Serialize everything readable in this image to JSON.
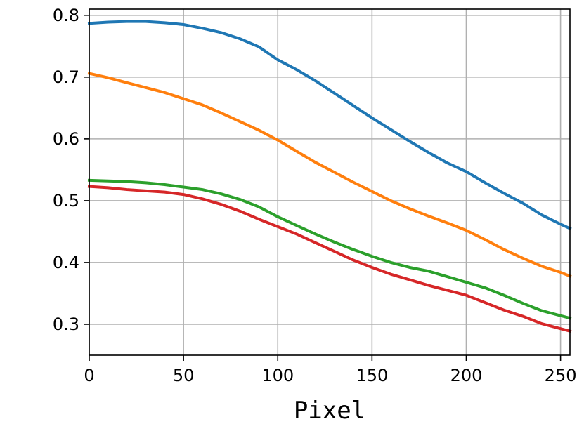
{
  "chart_data": {
    "type": "line",
    "title": "",
    "xlabel": "Pixel",
    "ylabel": "",
    "xlim": [
      0,
      255
    ],
    "ylim": [
      0.25,
      0.81
    ],
    "grid": true,
    "legend": "none",
    "x_ticks": [
      0,
      50,
      100,
      150,
      200,
      250
    ],
    "y_ticks": [
      0.3,
      0.4,
      0.5,
      0.6,
      0.7,
      0.8
    ],
    "x_tick_labels": [
      "0",
      "50",
      "100",
      "150",
      "200",
      "250"
    ],
    "y_tick_labels": [
      "0.3",
      "0.4",
      "0.5",
      "0.6",
      "0.7",
      "0.8"
    ],
    "x": [
      0,
      10,
      20,
      30,
      40,
      50,
      60,
      70,
      80,
      90,
      100,
      110,
      120,
      130,
      140,
      150,
      160,
      170,
      180,
      190,
      200,
      210,
      220,
      230,
      240,
      250,
      255
    ],
    "series": [
      {
        "color": "#1f77b4",
        "values": [
          0.787,
          0.789,
          0.79,
          0.79,
          0.788,
          0.785,
          0.779,
          0.772,
          0.762,
          0.749,
          0.728,
          0.712,
          0.694,
          0.674,
          0.654,
          0.634,
          0.615,
          0.596,
          0.578,
          0.561,
          0.547,
          0.529,
          0.512,
          0.496,
          0.477,
          0.462,
          0.455
        ]
      },
      {
        "color": "#ff7f0e",
        "values": [
          0.706,
          0.699,
          0.691,
          0.683,
          0.675,
          0.665,
          0.655,
          0.642,
          0.628,
          0.614,
          0.598,
          0.58,
          0.562,
          0.546,
          0.53,
          0.515,
          0.5,
          0.487,
          0.475,
          0.464,
          0.452,
          0.437,
          0.421,
          0.407,
          0.394,
          0.384,
          0.378
        ]
      },
      {
        "color": "#2ca02c",
        "values": [
          0.533,
          0.532,
          0.531,
          0.529,
          0.526,
          0.522,
          0.518,
          0.511,
          0.502,
          0.49,
          0.474,
          0.46,
          0.446,
          0.433,
          0.421,
          0.41,
          0.4,
          0.392,
          0.386,
          0.377,
          0.368,
          0.359,
          0.347,
          0.334,
          0.322,
          0.314,
          0.31
        ]
      },
      {
        "color": "#d62728",
        "values": [
          0.523,
          0.521,
          0.518,
          0.516,
          0.514,
          0.51,
          0.503,
          0.494,
          0.483,
          0.47,
          0.458,
          0.446,
          0.432,
          0.418,
          0.404,
          0.392,
          0.381,
          0.372,
          0.363,
          0.355,
          0.347,
          0.335,
          0.323,
          0.313,
          0.301,
          0.293,
          0.289
        ]
      }
    ]
  }
}
